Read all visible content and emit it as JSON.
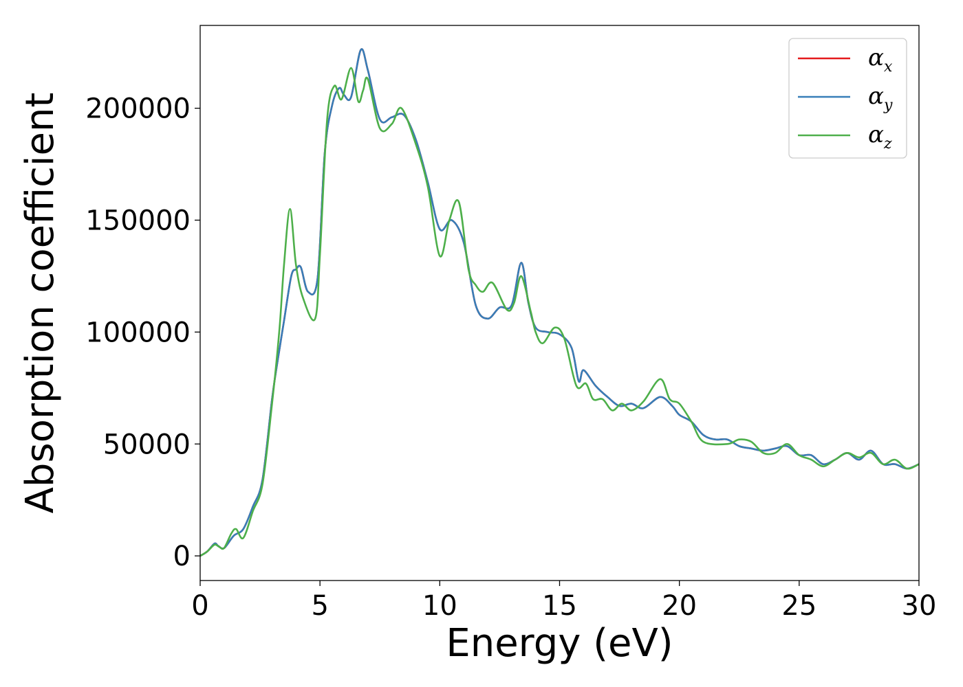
{
  "chart_data": {
    "type": "line",
    "xlabel": "Energy (eV)",
    "ylabel": "Absorption coefficient",
    "xlim": [
      0,
      30
    ],
    "ylim": [
      -11000,
      237000
    ],
    "xticks": [
      0,
      5,
      10,
      15,
      20,
      25,
      30
    ],
    "yticks": [
      0,
      50000,
      100000,
      150000,
      200000
    ],
    "grid": false,
    "legend_position": "top-right",
    "series": [
      {
        "name": "α_x",
        "legend_symbol": "α",
        "legend_sub": "x",
        "color": "#e41a1c",
        "x": [
          0,
          0.3,
          0.6,
          0.75,
          1.0,
          1.4,
          1.8,
          2.2,
          2.6,
          3.0,
          3.2,
          3.5,
          3.8,
          4.0,
          4.2,
          4.5,
          4.9,
          5.2,
          5.5,
          5.8,
          6.0,
          6.3,
          6.7,
          7.0,
          7.5,
          8.0,
          8.5,
          9.0,
          9.5,
          10.0,
          10.5,
          11.0,
          11.5,
          12.0,
          12.5,
          13.0,
          13.4,
          13.7,
          14.0,
          14.5,
          15.0,
          15.5,
          15.8,
          16.0,
          16.5,
          17.0,
          17.5,
          18.0,
          18.5,
          19.2,
          19.7,
          20.0,
          20.5,
          21.0,
          21.5,
          22.0,
          22.5,
          23.0,
          23.5,
          24.0,
          24.5,
          25.0,
          25.5,
          26.0,
          26.5,
          27.0,
          27.5,
          28.0,
          28.5,
          29.0,
          29.5,
          30.0
        ],
        "y": [
          0,
          2000,
          5500,
          4500,
          3500,
          9000,
          12000,
          22000,
          34000,
          70000,
          85000,
          105000,
          125000,
          128000,
          129000,
          118000,
          124000,
          180000,
          201000,
          209000,
          206000,
          205000,
          226000,
          217000,
          195000,
          196000,
          197000,
          186000,
          167000,
          146000,
          150000,
          140000,
          112000,
          106000,
          111000,
          112000,
          131000,
          113000,
          102000,
          100000,
          99000,
          93000,
          78000,
          83000,
          76000,
          71000,
          67000,
          68000,
          66000,
          71000,
          67000,
          63000,
          60000,
          54000,
          52000,
          52000,
          49000,
          48000,
          47000,
          48000,
          49000,
          45000,
          45000,
          41000,
          43000,
          46000,
          43000,
          47000,
          41000,
          41000,
          39000,
          41000
        ]
      },
      {
        "name": "α_y",
        "legend_symbol": "α",
        "legend_sub": "y",
        "color": "#377eb8",
        "x": [
          0,
          0.3,
          0.6,
          0.75,
          1.0,
          1.4,
          1.8,
          2.2,
          2.6,
          3.0,
          3.2,
          3.5,
          3.8,
          4.0,
          4.2,
          4.5,
          4.9,
          5.2,
          5.5,
          5.8,
          6.0,
          6.3,
          6.7,
          7.0,
          7.5,
          8.0,
          8.5,
          9.0,
          9.5,
          10.0,
          10.5,
          11.0,
          11.5,
          12.0,
          12.5,
          13.0,
          13.4,
          13.7,
          14.0,
          14.5,
          15.0,
          15.5,
          15.8,
          16.0,
          16.5,
          17.0,
          17.5,
          18.0,
          18.5,
          19.2,
          19.7,
          20.0,
          20.5,
          21.0,
          21.5,
          22.0,
          22.5,
          23.0,
          23.5,
          24.0,
          24.5,
          25.0,
          25.5,
          26.0,
          26.5,
          27.0,
          27.5,
          28.0,
          28.5,
          29.0,
          29.5,
          30.0
        ],
        "y": [
          0,
          2000,
          5500,
          4500,
          3500,
          9000,
          12000,
          22000,
          34000,
          70000,
          85000,
          105000,
          125000,
          128000,
          129000,
          118000,
          124000,
          180000,
          201000,
          209000,
          206000,
          205000,
          226000,
          217000,
          195000,
          196000,
          197000,
          186000,
          167000,
          146000,
          150000,
          140000,
          112000,
          106000,
          111000,
          112000,
          131000,
          113000,
          102000,
          100000,
          99000,
          93000,
          78000,
          83000,
          76000,
          71000,
          67000,
          68000,
          66000,
          71000,
          67000,
          63000,
          60000,
          54000,
          52000,
          52000,
          49000,
          48000,
          47000,
          48000,
          49000,
          45000,
          45000,
          41000,
          43000,
          46000,
          43000,
          47000,
          41000,
          41000,
          39000,
          41000
        ]
      },
      {
        "name": "α_z",
        "legend_symbol": "α",
        "legend_sub": "z",
        "color": "#4daf4a",
        "x": [
          0,
          0.3,
          0.6,
          0.8,
          1.0,
          1.3,
          1.5,
          1.8,
          2.2,
          2.6,
          3.0,
          3.3,
          3.5,
          3.75,
          4.0,
          4.3,
          4.8,
          5.0,
          5.3,
          5.6,
          5.9,
          6.3,
          6.6,
          6.8,
          7.0,
          7.5,
          8.0,
          8.4,
          9.0,
          9.5,
          10.0,
          10.4,
          10.8,
          11.2,
          11.5,
          11.8,
          12.2,
          12.8,
          13.1,
          13.4,
          13.8,
          14.0,
          14.3,
          14.8,
          15.2,
          15.7,
          16.1,
          16.4,
          16.8,
          17.2,
          17.6,
          18.0,
          18.5,
          19.2,
          19.6,
          20.0,
          20.5,
          21.0,
          22.0,
          22.5,
          23.0,
          23.5,
          24.0,
          24.5,
          25.0,
          25.5,
          26.0,
          26.5,
          27.0,
          27.5,
          28.0,
          28.5,
          29.0,
          29.5,
          30.0
        ],
        "y": [
          0,
          2000,
          5000,
          4000,
          3500,
          10000,
          12000,
          8000,
          20000,
          32000,
          68000,
          100000,
          130000,
          155000,
          130000,
          115000,
          106000,
          135000,
          195000,
          210000,
          204000,
          218000,
          203000,
          208000,
          213000,
          191000,
          193000,
          200000,
          184000,
          165000,
          134000,
          150000,
          158000,
          128000,
          121000,
          118000,
          122000,
          110000,
          113000,
          125000,
          109000,
          100000,
          95000,
          102000,
          97000,
          76000,
          77000,
          70000,
          70000,
          65000,
          68000,
          65000,
          69000,
          79000,
          70000,
          68000,
          60000,
          51000,
          50000,
          52000,
          51000,
          46000,
          46000,
          50000,
          45000,
          43000,
          40000,
          43000,
          46000,
          44000,
          46000,
          41000,
          43000,
          39000,
          41000
        ]
      }
    ]
  }
}
